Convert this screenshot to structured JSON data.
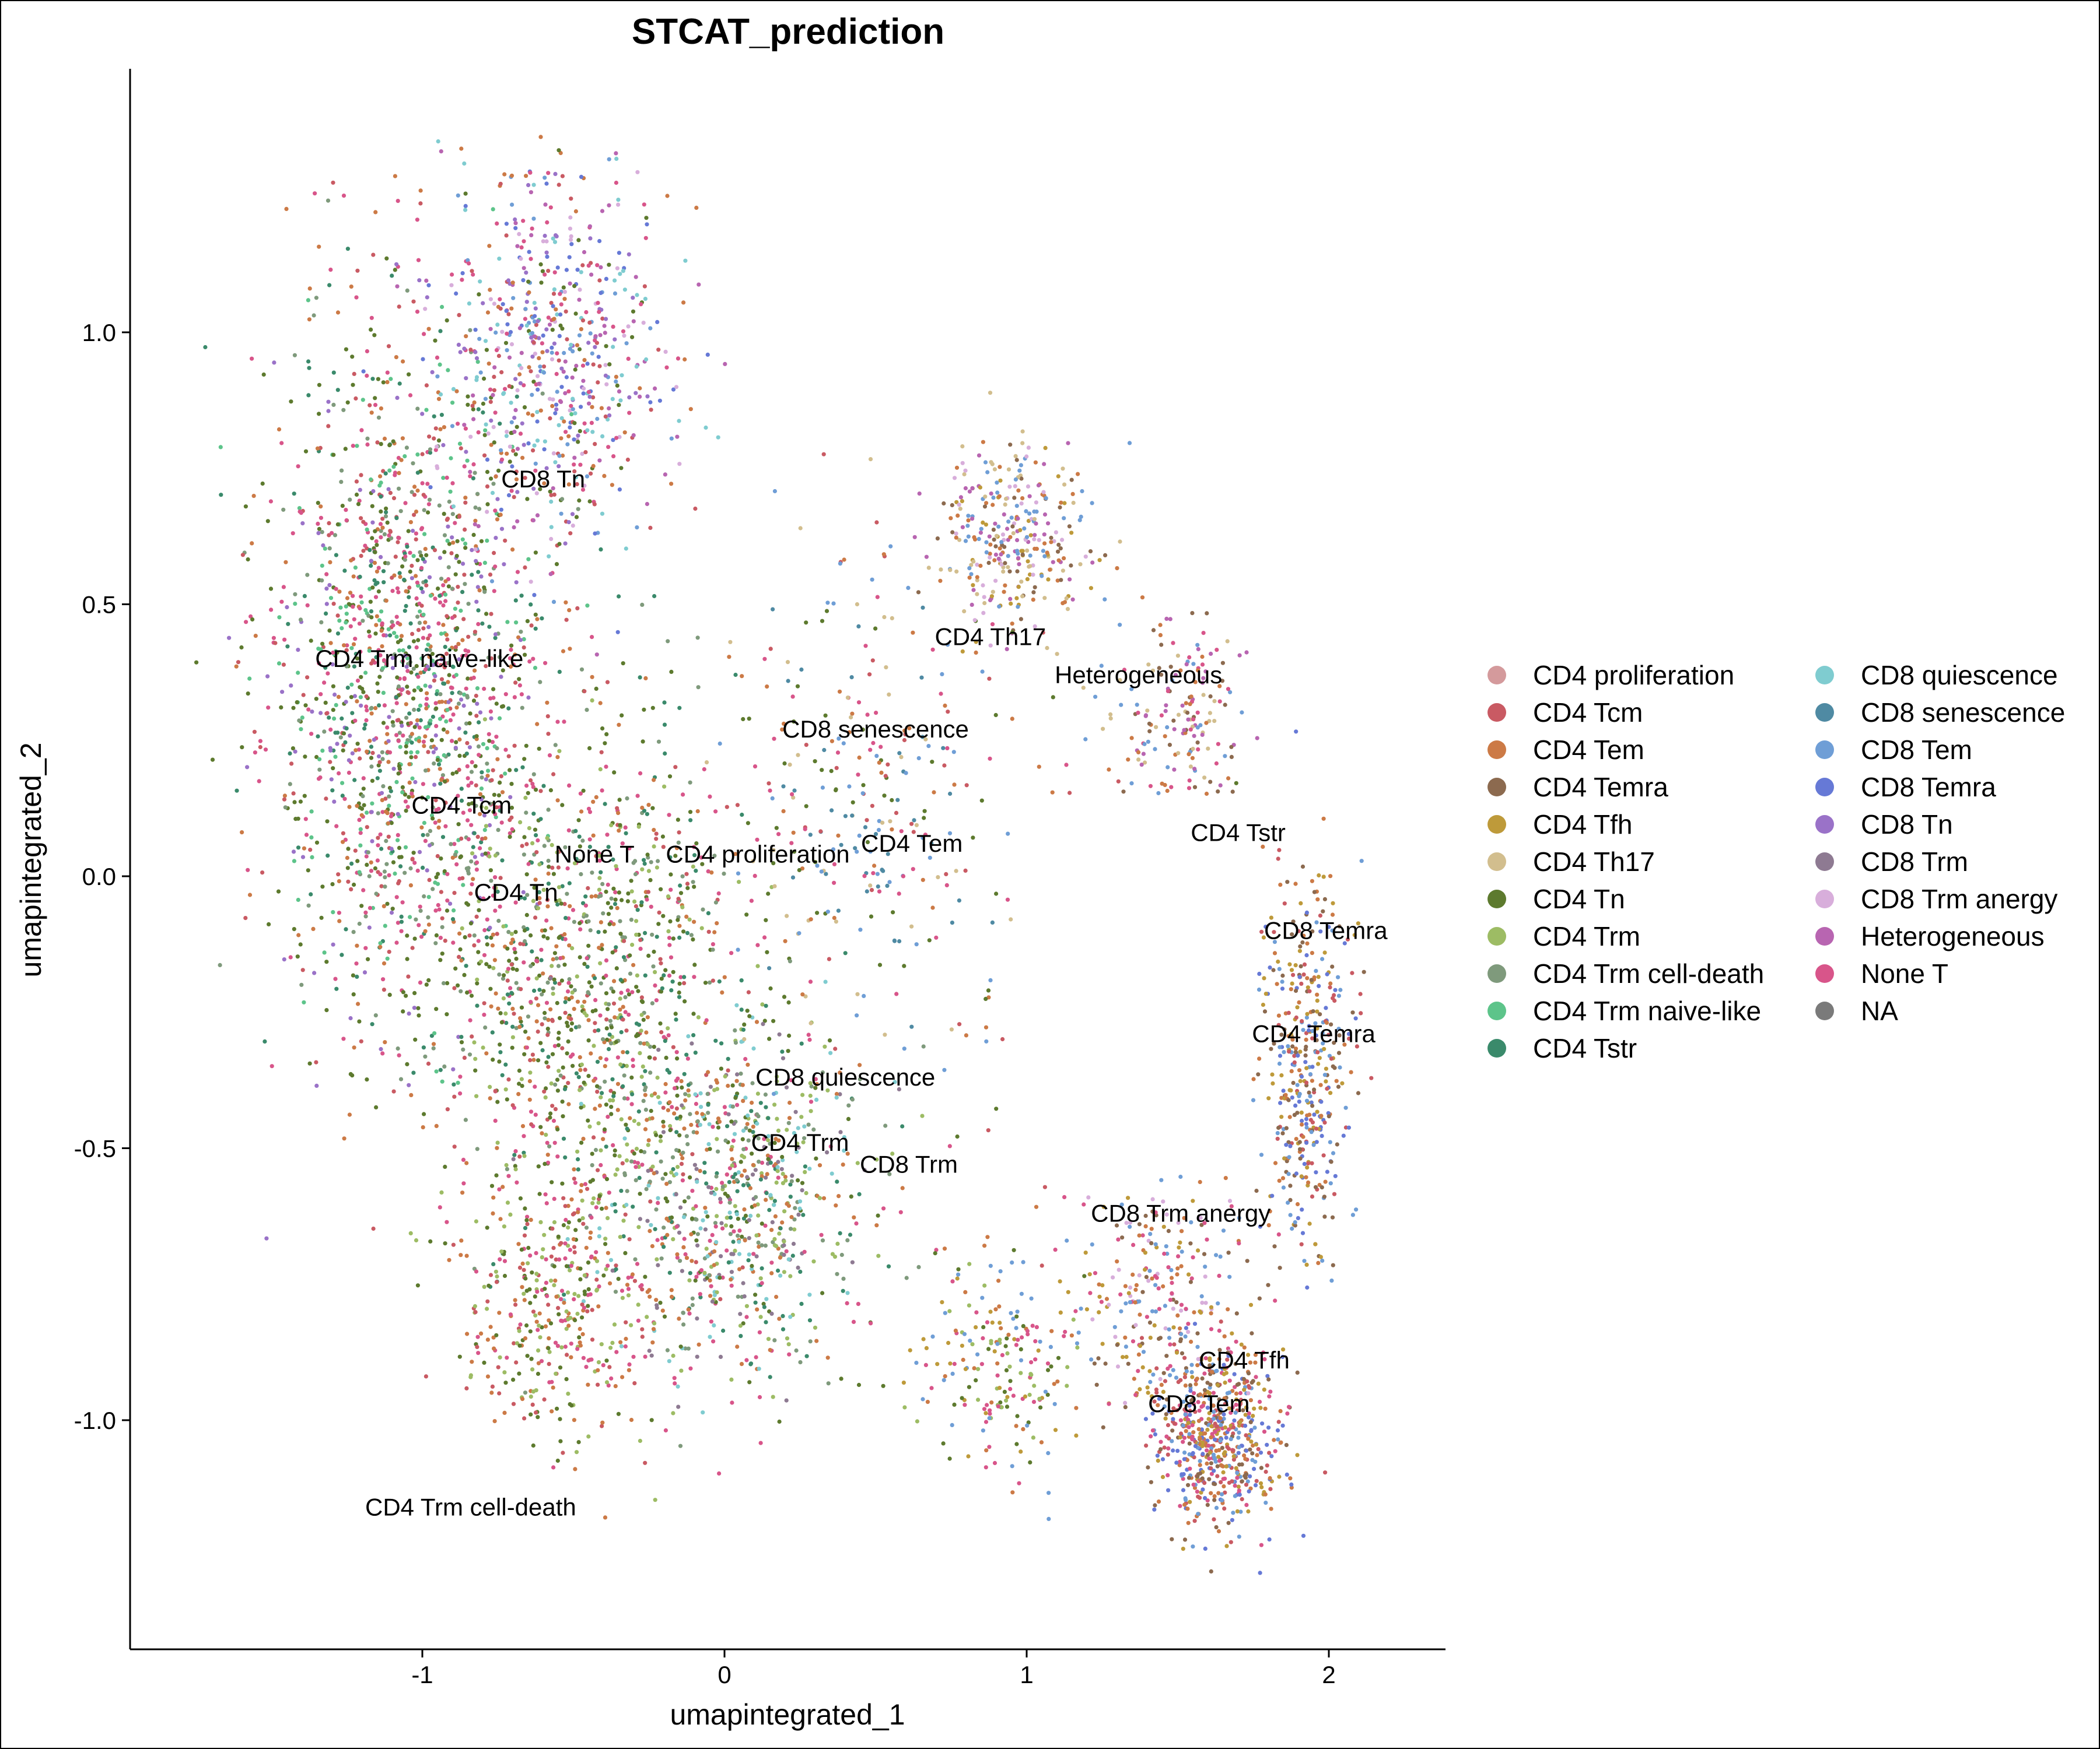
{
  "chart_data": {
    "type": "scatter",
    "title": "STCAT_prediction",
    "xlabel": "umapintegrated_1",
    "ylabel": "umapintegrated_2",
    "xlim": [
      -1.97,
      2.38
    ],
    "ylim": [
      -1.42,
      1.5
    ],
    "x_ticks": [
      -1,
      0,
      1,
      2
    ],
    "x_tick_labels": [
      "-1",
      "0",
      "1",
      "2"
    ],
    "y_ticks": [
      -1.0,
      -0.5,
      0.0,
      0.5,
      1.0
    ],
    "y_tick_labels": [
      "-1.0",
      "-0.5",
      "0.0",
      "0.5",
      "1.0"
    ],
    "grid": false,
    "legend_position": "right",
    "categories": [
      {
        "name": "CD4 proliferation",
        "color": "#D49A9C"
      },
      {
        "name": "CD4 Tcm",
        "color": "#C95A63"
      },
      {
        "name": "CD4 Tem",
        "color": "#CC7A46"
      },
      {
        "name": "CD4 Temra",
        "color": "#8C6A4F"
      },
      {
        "name": "CD4 Tfh",
        "color": "#BE9A3A"
      },
      {
        "name": "CD4 Th17",
        "color": "#D2BE8E"
      },
      {
        "name": "CD4 Tn",
        "color": "#5D7A2E"
      },
      {
        "name": "CD4 Trm",
        "color": "#9DBC64"
      },
      {
        "name": "CD4 Trm cell-death",
        "color": "#7F9A7C"
      },
      {
        "name": "CD4 Trm naive-like",
        "color": "#5DC48A"
      },
      {
        "name": "CD4 Tstr",
        "color": "#3A8A6B"
      },
      {
        "name": "CD8 quiescence",
        "color": "#7FCCD0"
      },
      {
        "name": "CD8 senescence",
        "color": "#4F8AA3"
      },
      {
        "name": "CD8 Tem",
        "color": "#6F9ED6"
      },
      {
        "name": "CD8 Temra",
        "color": "#6679D6"
      },
      {
        "name": "CD8 Tn",
        "color": "#9A72C8"
      },
      {
        "name": "CD8 Trm",
        "color": "#8E7A92"
      },
      {
        "name": "CD8 Trm anergy",
        "color": "#D8AEDB"
      },
      {
        "name": "Heterogeneous",
        "color": "#B865B1"
      },
      {
        "name": "None T",
        "color": "#D8558A"
      },
      {
        "name": "NA",
        "color": "#7A7A7A"
      }
    ],
    "cluster_labels": [
      {
        "text": "CD8 Tn",
        "x": -0.6,
        "y": 0.73
      },
      {
        "text": "CD4 Trm naive-like",
        "x": -1.01,
        "y": 0.4
      },
      {
        "text": "CD4 Tcm",
        "x": -0.87,
        "y": 0.13
      },
      {
        "text": "None T",
        "x": -0.43,
        "y": 0.04
      },
      {
        "text": "CD4 proliferation",
        "x": 0.11,
        "y": 0.04
      },
      {
        "text": "CD4 Tem",
        "x": 0.62,
        "y": 0.06
      },
      {
        "text": "CD4 Tn",
        "x": -0.69,
        "y": -0.03
      },
      {
        "text": "CD4 Th17",
        "x": 0.88,
        "y": 0.44
      },
      {
        "text": "Heterogeneous",
        "x": 1.37,
        "y": 0.37
      },
      {
        "text": "CD8 senescence",
        "x": 0.5,
        "y": 0.27
      },
      {
        "text": "CD4 Tstr",
        "x": 1.7,
        "y": 0.08
      },
      {
        "text": "CD8 Temra",
        "x": 1.99,
        "y": -0.1
      },
      {
        "text": "CD4 Temra",
        "x": 1.95,
        "y": -0.29
      },
      {
        "text": "CD8 quiescence",
        "x": 0.4,
        "y": -0.37
      },
      {
        "text": "CD4 Trm",
        "x": 0.25,
        "y": -0.49
      },
      {
        "text": "CD8 Trm",
        "x": 0.61,
        "y": -0.53
      },
      {
        "text": "CD8 Trm anergy",
        "x": 1.51,
        "y": -0.62
      },
      {
        "text": "CD4 Tfh",
        "x": 1.72,
        "y": -0.89
      },
      {
        "text": "CD8 Tem",
        "x": 1.57,
        "y": -0.97
      },
      {
        "text": "CD4 Trm cell-death",
        "x": -0.84,
        "y": -1.16
      }
    ]
  }
}
